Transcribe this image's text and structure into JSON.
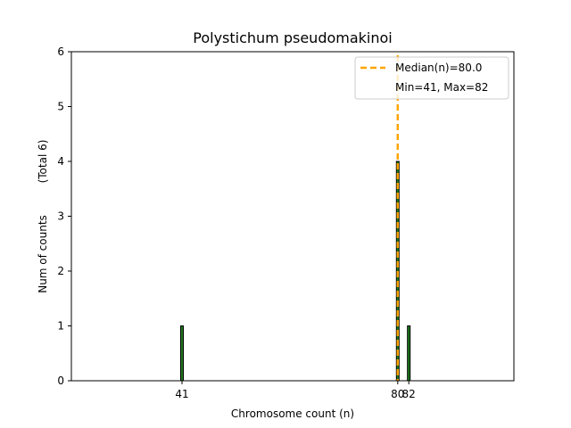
{
  "chart_data": {
    "type": "bar",
    "title": "Polystichum pseudomakinoi",
    "xlabel": "Chromosome count (n)",
    "ylabel": "Num of counts",
    "ylabel_total": "(Total 6)",
    "xlim": [
      21,
      101
    ],
    "ylim": [
      0,
      6
    ],
    "yticks": [
      0,
      1,
      2,
      3,
      4,
      5,
      6
    ],
    "xticks": [
      41,
      80,
      82
    ],
    "bars": [
      {
        "x": 41,
        "count": 1
      },
      {
        "x": 80,
        "count": 4
      },
      {
        "x": 82,
        "count": 1
      }
    ],
    "median": 80.0,
    "min": 41,
    "max": 82,
    "legend": {
      "position": "top-right",
      "median_label": "Median(n)=80.0",
      "range_label": "Min=41, Max=82"
    },
    "colors": {
      "bar_fill": "#1f7a1f",
      "bar_edge": "#000000",
      "median_line": "#ffa500"
    }
  }
}
